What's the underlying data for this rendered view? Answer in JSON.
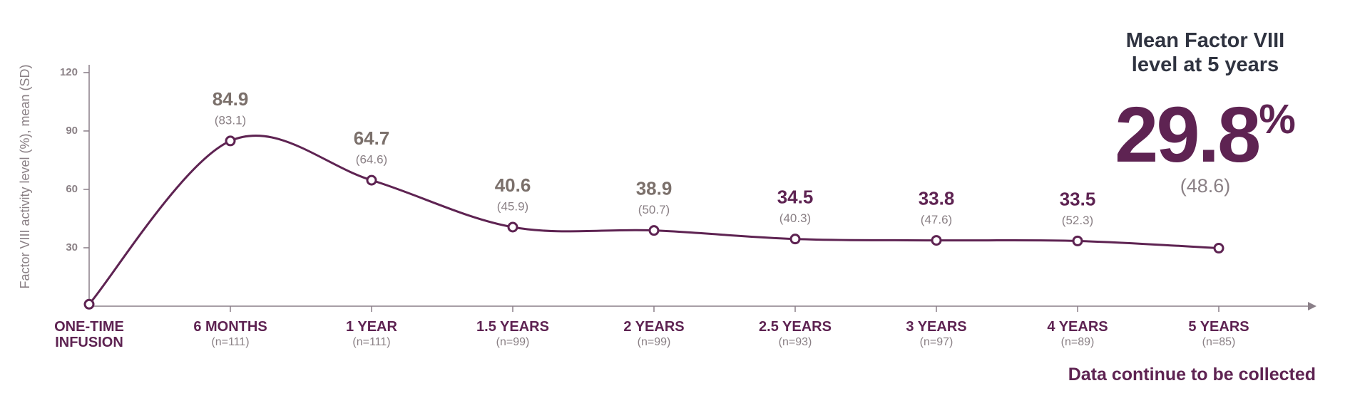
{
  "chart_data": {
    "type": "line",
    "y_label": "Factor VIII activity level (%), mean (SD)",
    "categories": [
      "ONE-TIME INFUSION",
      "6 MONTHS",
      "1 YEAR",
      "1.5 YEARS",
      "2 YEARS",
      "2.5 YEARS",
      "3 YEARS",
      "4 YEARS",
      "5 YEARS"
    ],
    "n_labels": [
      "(n=111)",
      "(n=111)",
      "(n=99)",
      "(n=99)",
      "(n=93)",
      "(n=97)",
      "(n=89)",
      "(n=85)"
    ],
    "series": [
      {
        "name": "Mean Factor VIII",
        "color": "#5e2352",
        "values": [
          1,
          84.9,
          64.7,
          40.6,
          38.9,
          34.5,
          33.8,
          33.5,
          29.8
        ],
        "value_labels": [
          null,
          "84.9",
          "64.7",
          "40.6",
          "38.9",
          "34.5",
          "33.8",
          "33.5",
          null
        ],
        "value_label_colors": [
          null,
          "#7b706b",
          "#7b706b",
          "#7b706b",
          "#7b706b",
          "#5e2352",
          "#5e2352",
          "#5e2352",
          null
        ],
        "sd_labels": [
          null,
          "(83.1)",
          "(64.6)",
          "(45.9)",
          "(50.7)",
          "(40.3)",
          "(47.6)",
          "(52.3)",
          null
        ]
      }
    ],
    "ylim": [
      0,
      124
    ],
    "yticks": [
      30,
      60,
      90,
      120
    ],
    "grid": false,
    "callout": {
      "title": "Mean Factor VIII level at 5 years",
      "value_label": "29.8",
      "unit": "%",
      "sd": "(48.6)"
    },
    "footnote": "Data continue to be collected"
  }
}
